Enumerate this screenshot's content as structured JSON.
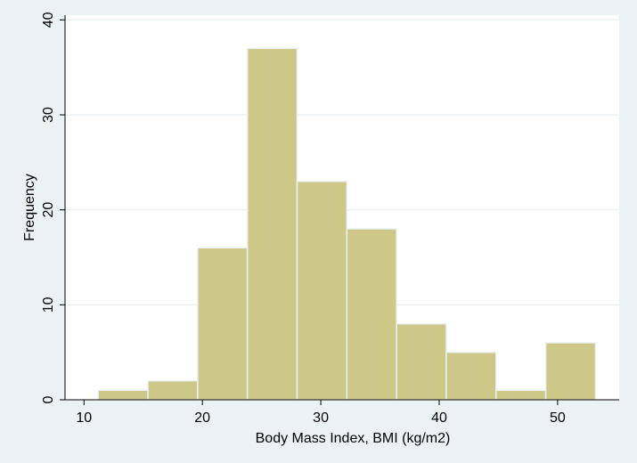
{
  "chart_data": {
    "type": "bar",
    "subtype": "histogram",
    "xlabel": "Body Mass Index, BMI (kg/m2)",
    "ylabel": "Frequency",
    "bins": [
      {
        "x0": 11.2,
        "x1": 15.4,
        "value": 1
      },
      {
        "x0": 15.4,
        "x1": 19.6,
        "value": 2
      },
      {
        "x0": 19.6,
        "x1": 23.8,
        "value": 16
      },
      {
        "x0": 23.8,
        "x1": 28.0,
        "value": 37
      },
      {
        "x0": 28.0,
        "x1": 32.2,
        "value": 23
      },
      {
        "x0": 32.2,
        "x1": 36.4,
        "value": 18
      },
      {
        "x0": 36.4,
        "x1": 40.6,
        "value": 8
      },
      {
        "x0": 40.6,
        "x1": 44.8,
        "value": 5
      },
      {
        "x0": 44.8,
        "x1": 49.0,
        "value": 1
      },
      {
        "x0": 49.0,
        "x1": 53.2,
        "value": 6
      }
    ],
    "xticks": [
      10,
      20,
      30,
      40,
      50
    ],
    "yticks": [
      0,
      10,
      20,
      30,
      40
    ],
    "xlim": [
      8.4,
      55.2
    ],
    "ylim": [
      0,
      40.5
    ],
    "grid": "horizontal",
    "colors": {
      "bar_fill": "#cdc788",
      "bar_edge": "#eaf2f3",
      "plot_bg": "#ffffff",
      "outer_bg": "#eaf2f3",
      "grid": "#e8eef0",
      "axis": "#000000"
    }
  }
}
